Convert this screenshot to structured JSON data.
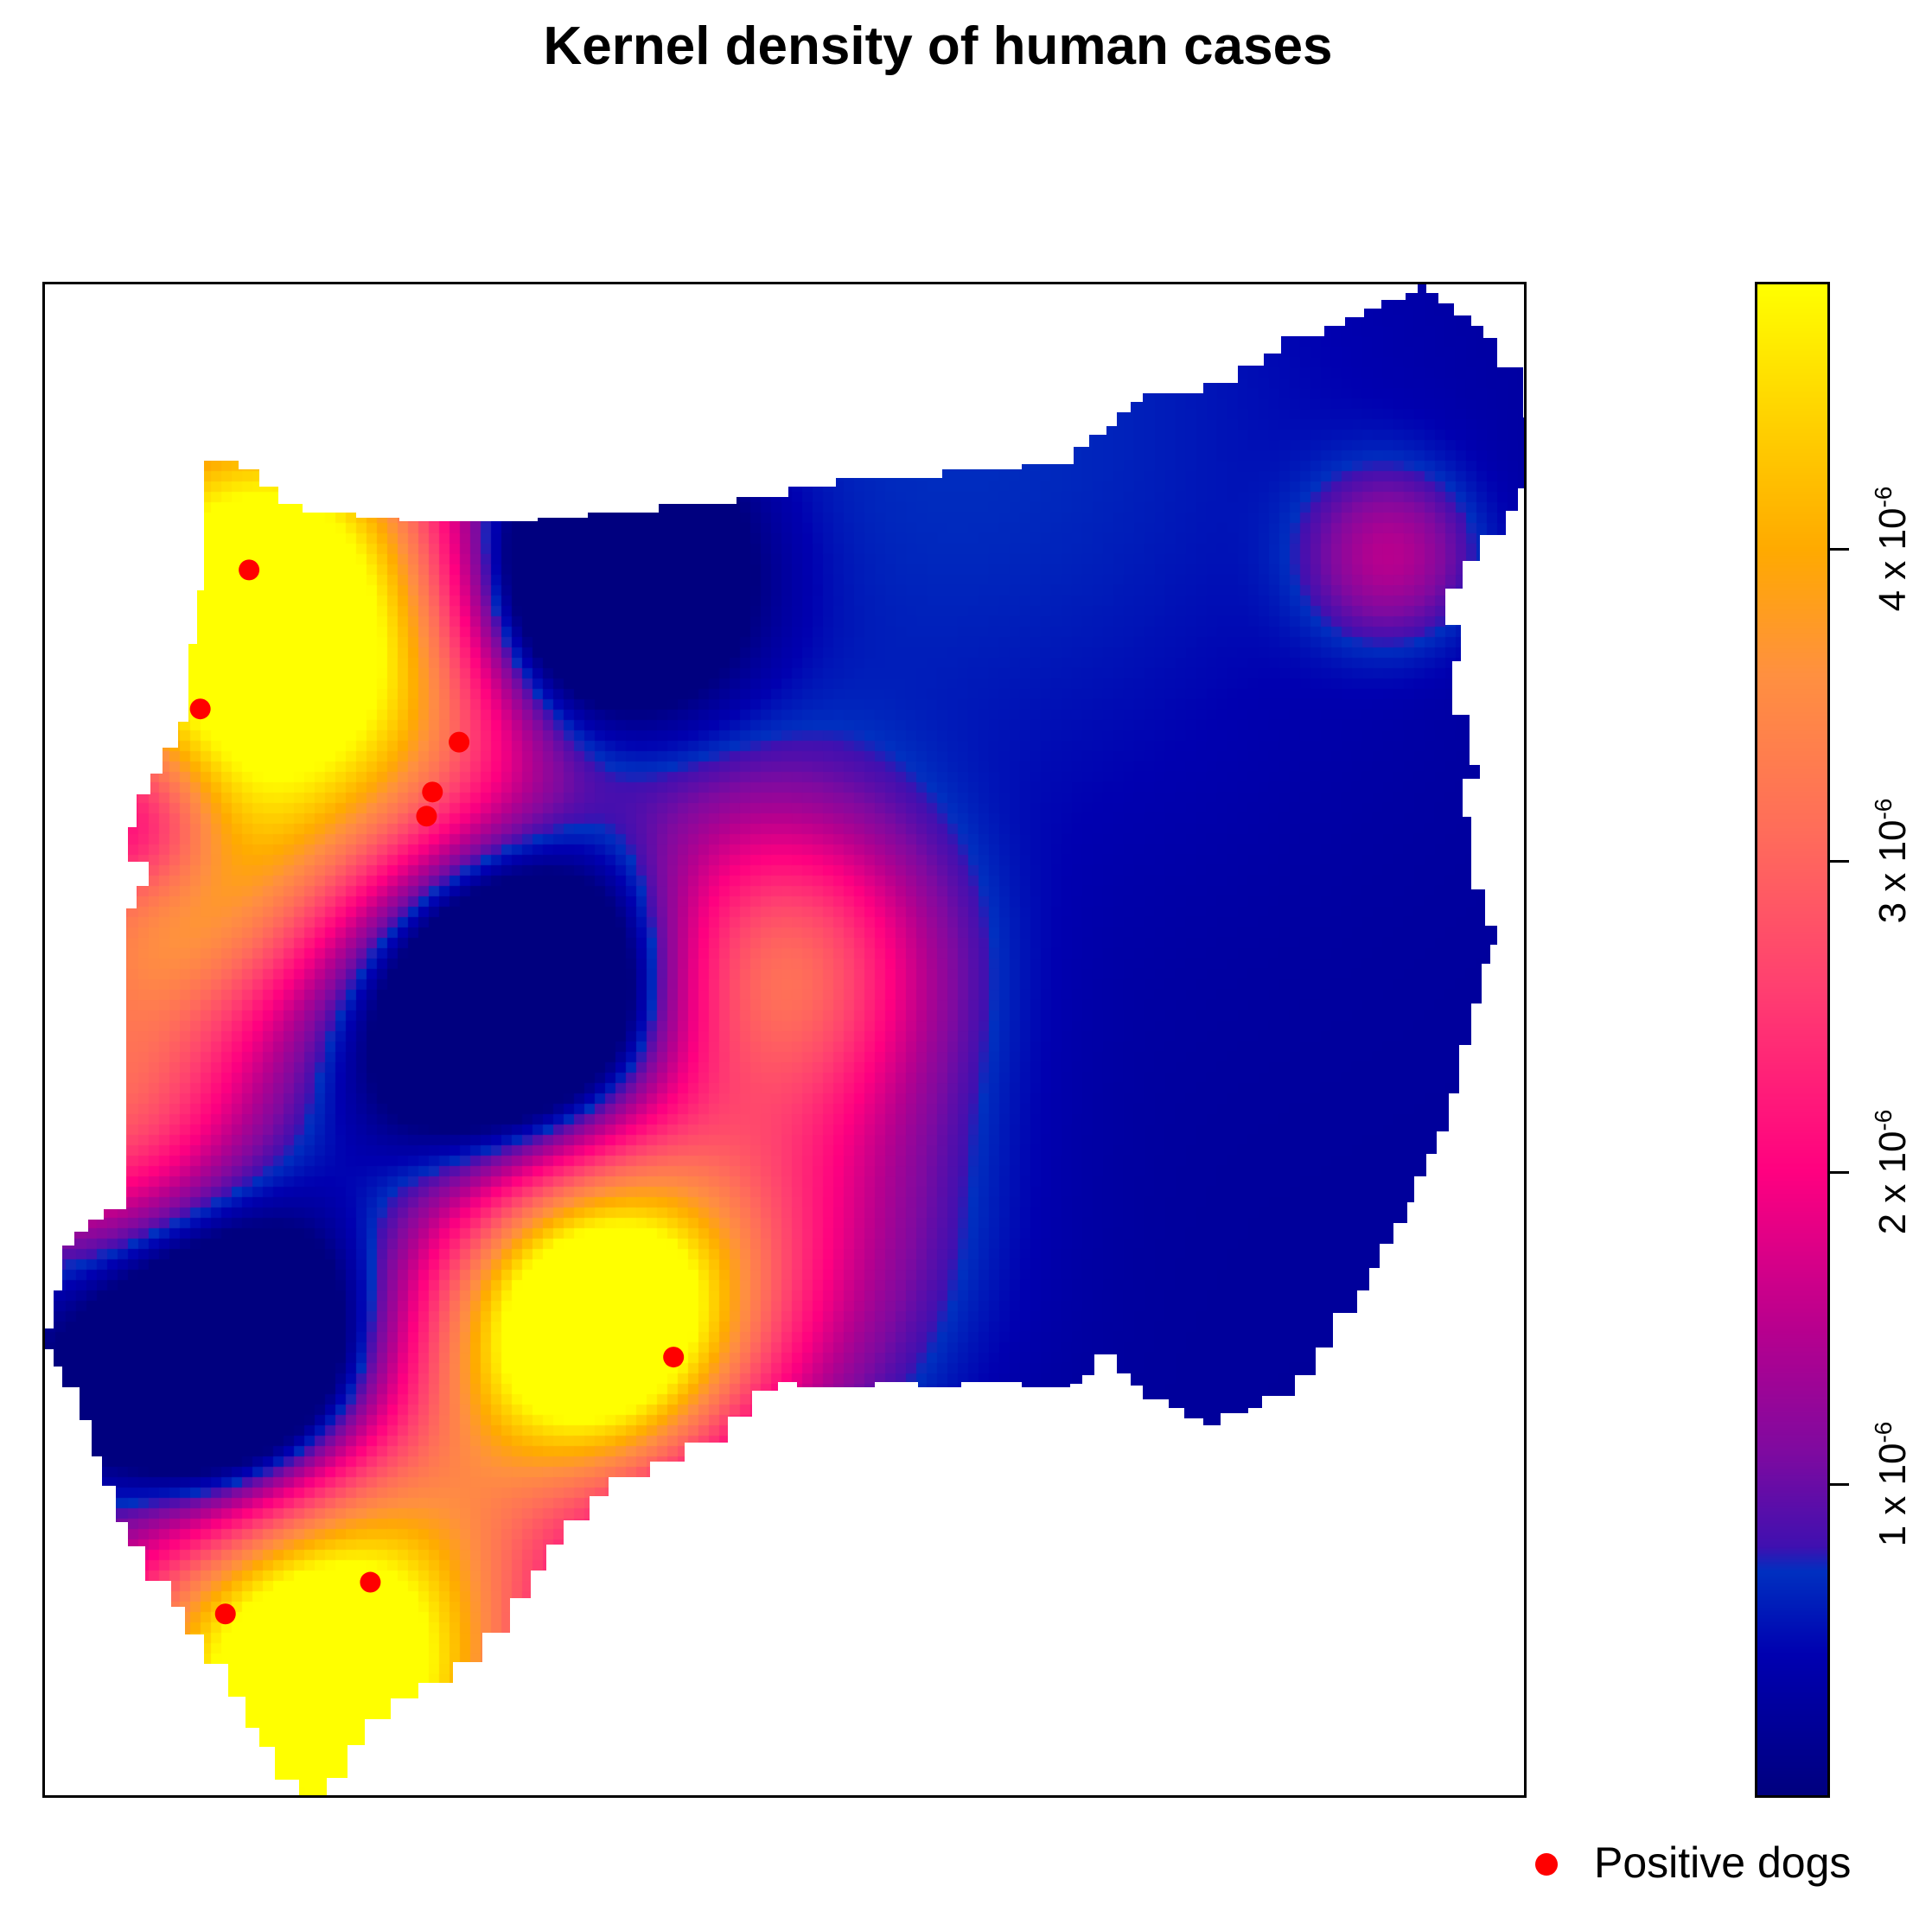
{
  "title": "Kernel density of human cases",
  "chart_data": {
    "type": "heatmap",
    "title": "Kernel density of human cases",
    "legend_placement": "right",
    "colorbar": {
      "min": 0,
      "max": 4.85e-06,
      "ticks": [
        {
          "value": 1e-06,
          "mantissa": "1 x 10",
          "exp": "-6"
        },
        {
          "value": 2e-06,
          "mantissa": "2 x 10",
          "exp": "-6"
        },
        {
          "value": 3e-06,
          "mantissa": "3 x 10",
          "exp": "-6"
        },
        {
          "value": 4e-06,
          "mantissa": "4 x 10",
          "exp": "-6"
        }
      ],
      "color_stops": [
        {
          "value": 0.0,
          "color": "#00007f"
        },
        {
          "value": 4.5e-07,
          "color": "#0000b0"
        },
        {
          "value": 7.2e-07,
          "color": "#0030c0"
        },
        {
          "value": 8e-07,
          "color": "#4010b0"
        },
        {
          "value": 1.1e-06,
          "color": "#7e0aa0"
        },
        {
          "value": 1.5e-06,
          "color": "#b8008e"
        },
        {
          "value": 2e-06,
          "color": "#ff0080"
        },
        {
          "value": 2.6e-06,
          "color": "#ff4070"
        },
        {
          "value": 3.1e-06,
          "color": "#ff6d5a"
        },
        {
          "value": 3.6e-06,
          "color": "#ff9040"
        },
        {
          "value": 4e-06,
          "color": "#ffaa00"
        },
        {
          "value": 4.4e-06,
          "color": "#ffd000"
        },
        {
          "value": 4.85e-06,
          "color": "#ffff00"
        }
      ]
    },
    "density_peaks": [
      {
        "x": 0.37,
        "y": 0.31,
        "value": 4.8e-06,
        "spread": 0.07
      },
      {
        "x": 0.18,
        "y": 0.05,
        "value": 4.3e-06,
        "spread": 0.09
      },
      {
        "x": 0.13,
        "y": 0.81,
        "value": 3.8e-06,
        "spread": 0.1
      },
      {
        "x": 0.22,
        "y": 0.72,
        "value": 3.1e-06,
        "spread": 0.12
      },
      {
        "x": 0.08,
        "y": 0.6,
        "value": 2.6e-06,
        "spread": 0.07
      },
      {
        "x": 0.2,
        "y": 0.17,
        "value": 3e-06,
        "spread": 0.11
      },
      {
        "x": 0.5,
        "y": 0.55,
        "value": 2.4e-06,
        "spread": 0.07
      },
      {
        "x": 0.45,
        "y": 0.38,
        "value": 2e-06,
        "spread": 0.1
      },
      {
        "x": 0.04,
        "y": 0.45,
        "value": 2.4e-06,
        "spread": 0.07
      },
      {
        "x": 0.91,
        "y": 0.82,
        "value": 1.1e-06,
        "spread": 0.04
      },
      {
        "x": 0.62,
        "y": 0.9,
        "value": 4.5e-07,
        "spread": 0.2
      }
    ],
    "density_lows": [
      {
        "x": 0.13,
        "y": 0.27,
        "depth": 4e-06,
        "spread": 0.07
      },
      {
        "x": 0.32,
        "y": 0.53,
        "depth": 3.5e-06,
        "spread": 0.07
      },
      {
        "x": 0.36,
        "y": 0.8,
        "depth": 3.5e-06,
        "spread": 0.07
      },
      {
        "x": 0.07,
        "y": 0.64,
        "depth": 2e-06,
        "spread": 0.04
      }
    ],
    "points": [
      {
        "name": "Positive dogs",
        "x": 0.138,
        "y": 0.811
      },
      {
        "name": "Positive dogs",
        "x": 0.105,
        "y": 0.719
      },
      {
        "name": "Positive dogs",
        "x": 0.28,
        "y": 0.697
      },
      {
        "name": "Positive dogs",
        "x": 0.262,
        "y": 0.664
      },
      {
        "name": "Positive dogs",
        "x": 0.258,
        "y": 0.648
      },
      {
        "name": "Positive dogs",
        "x": 0.425,
        "y": 0.29
      },
      {
        "name": "Positive dogs",
        "x": 0.22,
        "y": 0.141
      },
      {
        "name": "Positive dogs",
        "x": 0.122,
        "y": 0.12
      }
    ],
    "point_color": "#ff0000"
  },
  "legend": {
    "label": "Positive dogs",
    "marker_color": "#ff0000"
  }
}
